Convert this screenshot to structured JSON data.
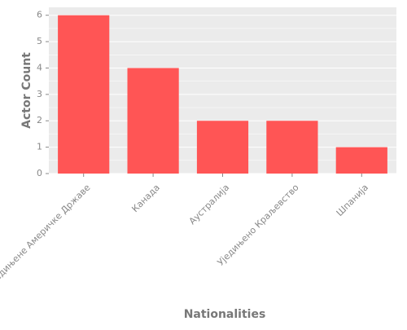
{
  "chart_data": {
    "type": "bar",
    "categories": [
      "Сједињене Америчке Државе",
      "Канада",
      "Аустралија",
      "Уједињено Краљевство",
      "Шпанија"
    ],
    "values": [
      6,
      4,
      2,
      2,
      1
    ],
    "title": "",
    "xlabel": "Nationalities",
    "ylabel": "Actor Count",
    "ylim": [
      0,
      6.3
    ],
    "yticks": [
      0,
      1,
      2,
      3,
      4,
      5,
      6
    ],
    "grid": true,
    "legend": "none",
    "colors": {
      "bar": "#ff5555",
      "panel_background": "#ebebeb",
      "grid": "#ffffff",
      "tick_text": "#888888",
      "axis_label_text": "#777777"
    }
  }
}
